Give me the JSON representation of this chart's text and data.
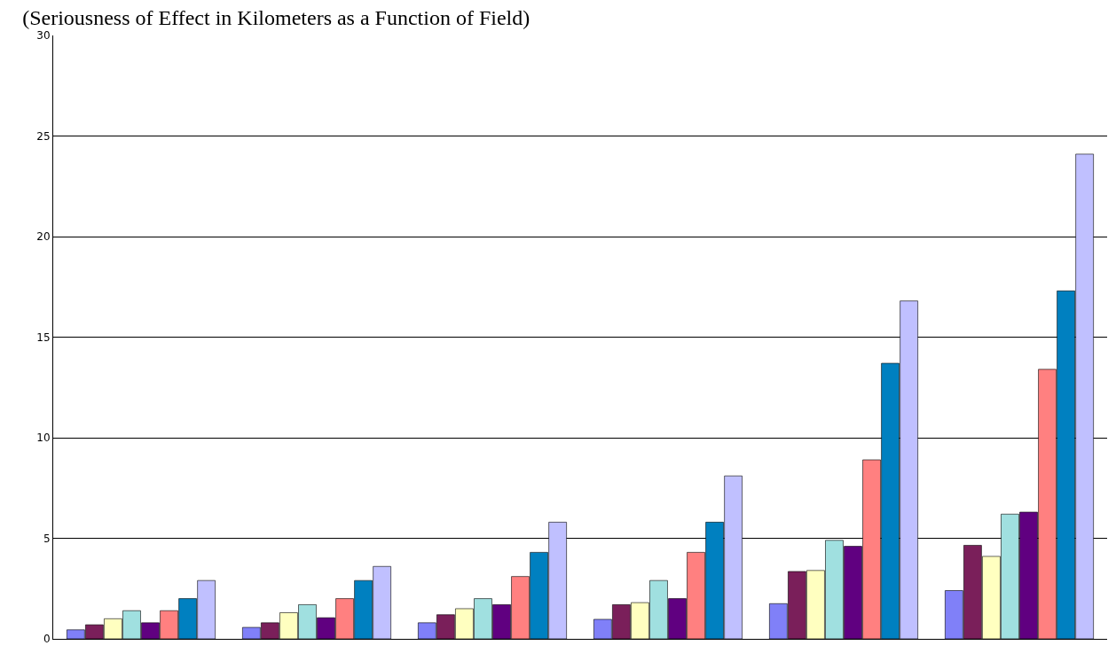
{
  "chart_data": {
    "type": "bar",
    "title": "(Seriousness of Effect in Kilometers as a Function of Field)",
    "categories": [
      null,
      null,
      null,
      null,
      null,
      null
    ],
    "series": [
      {
        "color": "#8080f8",
        "values": [
          0.45,
          0.57,
          0.8,
          0.97,
          1.75,
          2.4
        ]
      },
      {
        "color": "#7a1f5a",
        "values": [
          0.7,
          0.8,
          1.2,
          1.7,
          3.35,
          4.65
        ]
      },
      {
        "color": "#ffffc0",
        "values": [
          1.0,
          1.3,
          1.5,
          1.8,
          3.4,
          4.1
        ]
      },
      {
        "color": "#a0e0e0",
        "values": [
          1.4,
          1.7,
          2.0,
          2.9,
          4.9,
          6.2
        ]
      },
      {
        "color": "#600080",
        "values": [
          0.8,
          1.05,
          1.7,
          2.0,
          4.6,
          6.3
        ]
      },
      {
        "color": "#ff8080",
        "values": [
          1.4,
          2.0,
          3.1,
          4.3,
          8.9,
          13.4
        ]
      },
      {
        "color": "#0080c0",
        "values": [
          2.0,
          2.9,
          4.3,
          5.8,
          13.7,
          17.3
        ]
      },
      {
        "color": "#c0c0ff",
        "values": [
          2.9,
          3.6,
          5.8,
          8.1,
          16.8,
          24.1
        ]
      }
    ],
    "ylim": [
      0,
      30
    ],
    "yticks": [
      0,
      5,
      10,
      15,
      20,
      25,
      30
    ],
    "grid": "y",
    "legend": false,
    "tick_labels": "y"
  }
}
